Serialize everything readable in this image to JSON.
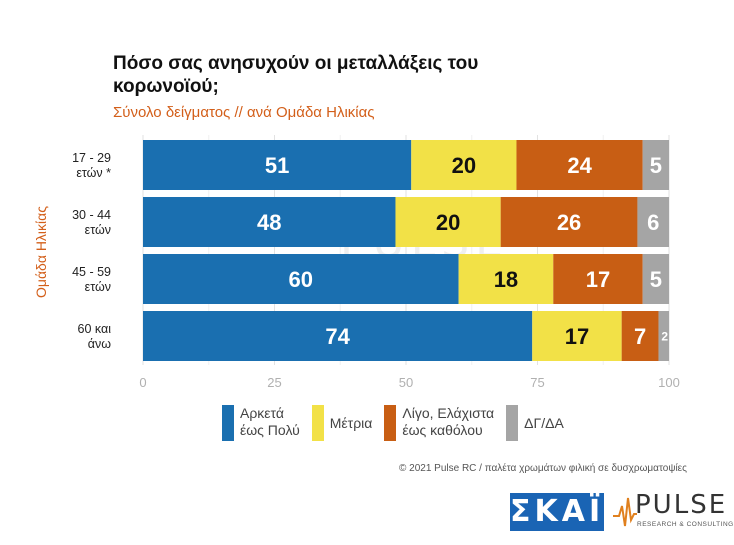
{
  "chart_data": {
    "type": "bar",
    "orientation": "horizontal",
    "stacked": true,
    "title": "Πόσο σας ανησυχούν οι μεταλλάξεις του κορωνοϊού;",
    "subtitle": "Σύνολο δείγματος // ανά Ομάδα Ηλικίας",
    "ylabel": "Ομάδα Ηλικίας",
    "categories": [
      [
        "17 - 29",
        "ετών *"
      ],
      [
        "30 - 44",
        "ετών"
      ],
      [
        "45 - 59",
        "ετών"
      ],
      [
        "60 και",
        "άνω"
      ]
    ],
    "series": [
      {
        "name": "Αρκετά έως Πολύ",
        "color": "#1a6fb0",
        "label_color": "#ffffff",
        "values": [
          51,
          48,
          60,
          74
        ]
      },
      {
        "name": "Μέτρια",
        "color": "#f2e147",
        "label_color": "#111111",
        "values": [
          20,
          20,
          18,
          17
        ]
      },
      {
        "name": "Λίγο, Ελάχιστα έως καθόλου",
        "color": "#c85e14",
        "label_color": "#ffffff",
        "values": [
          24,
          26,
          17,
          7
        ]
      },
      {
        "name": "ΔΓ/ΔΑ",
        "color": "#a5a5a5",
        "label_color": "#ffffff",
        "values": [
          5,
          6,
          5,
          2
        ]
      }
    ],
    "xlim": [
      0,
      100
    ],
    "xticks": [
      0,
      25,
      50,
      75,
      100
    ],
    "grid": true,
    "legend_position": "bottom"
  },
  "legend": [
    {
      "label": "Αρκετά\nέως Πολύ",
      "color": "#1a6fb0"
    },
    {
      "label": "Μέτρια",
      "color": "#f2e147"
    },
    {
      "label": "Λίγο, Ελάχιστα\nέως καθόλου",
      "color": "#c85e14"
    },
    {
      "label": "ΔΓ/ΔΑ",
      "color": "#a5a5a5"
    }
  ],
  "footer": {
    "copyright": "© 2021 Pulse RC  /  παλέτα χρωμάτων φιλική σε δυσχρωματοψίες",
    "skai_logo": "ΣΚΑΪ",
    "pulse_logo": "PULSE",
    "pulse_sub": "RESEARCH & CONSULTING"
  }
}
